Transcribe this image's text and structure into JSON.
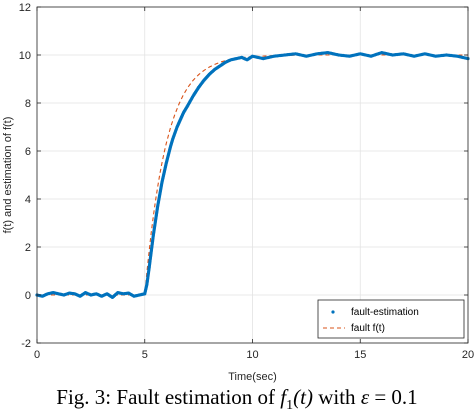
{
  "chart_data": {
    "type": "line",
    "title": "",
    "xlabel": "Time(sec)",
    "ylabel": "f(t) and estimation of f(t)",
    "xlim": [
      0,
      20
    ],
    "ylim": [
      -2,
      12
    ],
    "x_ticks": [
      0,
      5,
      10,
      15,
      20
    ],
    "y_ticks": [
      -2,
      0,
      2,
      4,
      6,
      8,
      10,
      12
    ],
    "grid": true,
    "legend_position": "bottom-right",
    "series": [
      {
        "name": "fault-estimation",
        "style": "dots",
        "color": "#0072BD",
        "x": [
          0,
          0.25,
          0.5,
          0.75,
          1,
          1.25,
          1.5,
          1.75,
          2,
          2.25,
          2.5,
          2.75,
          3,
          3.25,
          3.5,
          3.75,
          4,
          4.25,
          4.5,
          4.75,
          5,
          5.1,
          5.2,
          5.3,
          5.4,
          5.5,
          5.6,
          5.7,
          5.8,
          5.9,
          6,
          6.1,
          6.2,
          6.3,
          6.4,
          6.5,
          6.6,
          6.7,
          6.8,
          6.9,
          7,
          7.25,
          7.5,
          7.75,
          8,
          8.25,
          8.5,
          8.75,
          9,
          9.25,
          9.5,
          9.75,
          10,
          10.5,
          11,
          11.5,
          12,
          12.5,
          13,
          13.5,
          14,
          14.5,
          15,
          15.5,
          16,
          16.5,
          17,
          17.5,
          18,
          18.5,
          19,
          19.5,
          20
        ],
        "y": [
          0.0,
          -0.05,
          0.05,
          0.1,
          0.05,
          0.0,
          0.08,
          0.05,
          -0.05,
          0.1,
          0.0,
          0.05,
          -0.05,
          0.05,
          -0.1,
          0.1,
          0.05,
          0.08,
          -0.05,
          0.0,
          0.05,
          0.45,
          1.1,
          1.8,
          2.5,
          3.1,
          3.7,
          4.2,
          4.7,
          5.1,
          5.5,
          5.85,
          6.2,
          6.5,
          6.75,
          7.0,
          7.2,
          7.4,
          7.6,
          7.75,
          7.9,
          8.3,
          8.65,
          8.95,
          9.2,
          9.4,
          9.55,
          9.7,
          9.8,
          9.85,
          9.9,
          9.8,
          9.95,
          9.85,
          9.95,
          10.0,
          10.05,
          9.95,
          10.05,
          10.1,
          10.0,
          9.95,
          10.05,
          9.95,
          10.1,
          10.0,
          10.05,
          9.95,
          10.05,
          9.95,
          10.0,
          9.95,
          9.85
        ]
      },
      {
        "name": "fault f(t)",
        "style": "dashed",
        "color": "#D95319",
        "x": [
          0,
          5,
          5.1,
          5.2,
          5.3,
          5.4,
          5.5,
          5.6,
          5.7,
          5.8,
          5.9,
          6,
          6.2,
          6.4,
          6.6,
          6.8,
          7,
          7.25,
          7.5,
          7.75,
          8,
          8.25,
          8.5,
          8.75,
          9,
          9.5,
          10,
          11,
          12,
          13,
          14,
          15,
          16,
          17,
          18,
          19,
          20
        ],
        "y": [
          0,
          0,
          0.95,
          1.81,
          2.59,
          3.3,
          3.93,
          4.51,
          5.03,
          5.51,
          5.93,
          6.32,
          6.99,
          7.53,
          7.98,
          8.35,
          8.65,
          8.95,
          9.18,
          9.36,
          9.5,
          9.61,
          9.7,
          9.77,
          9.82,
          9.89,
          9.93,
          9.98,
          9.99,
          10,
          10,
          10,
          10,
          10,
          10,
          10,
          10
        ]
      }
    ]
  },
  "caption": {
    "prefix": "Fig. 3: Fault estimation of ",
    "fn_symbol": "f",
    "fn_subscript": "1",
    "fn_arg": "(t)",
    "middle": " with ",
    "eps_symbol": "ε",
    "eps_value": " = 0.1"
  }
}
